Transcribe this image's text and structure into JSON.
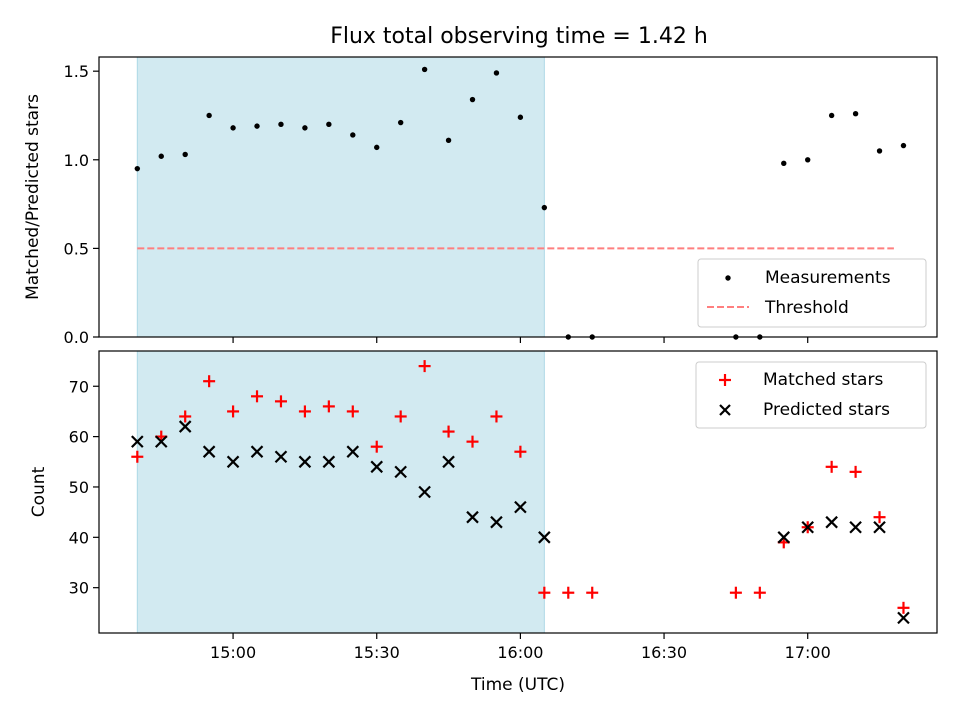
{
  "title": "Flux total observing time = 1.42 h",
  "xlabel": "Time (UTC)",
  "x_ticks": [
    "15:00",
    "15:30",
    "16:00",
    "16:30",
    "17:00"
  ],
  "colors": {
    "shade": "#add8e6",
    "measurements": "#000000",
    "threshold": "#ff7f7f",
    "matched": "#ff0000",
    "predicted": "#000000"
  },
  "chart_data": [
    {
      "type": "scatter",
      "ylabel": "Matched/Predicted stars",
      "xlim": [
        "14:32",
        "17:27"
      ],
      "ylim": [
        0,
        1.58
      ],
      "y_ticks": [
        "0.0",
        "0.5",
        "1.0",
        "1.5"
      ],
      "shaded_region": [
        "14:40",
        "16:05"
      ],
      "legend_position": "lower-right",
      "series": [
        {
          "name": "Measurements",
          "marker": "dot",
          "points": [
            [
              "14:40",
              0.95
            ],
            [
              "14:45",
              1.02
            ],
            [
              "14:50",
              1.03
            ],
            [
              "14:55",
              1.25
            ],
            [
              "15:00",
              1.18
            ],
            [
              "15:05",
              1.19
            ],
            [
              "15:10",
              1.2
            ],
            [
              "15:15",
              1.18
            ],
            [
              "15:20",
              1.2
            ],
            [
              "15:25",
              1.14
            ],
            [
              "15:30",
              1.07
            ],
            [
              "15:35",
              1.21
            ],
            [
              "15:40",
              1.51
            ],
            [
              "15:45",
              1.11
            ],
            [
              "15:50",
              1.34
            ],
            [
              "15:55",
              1.49
            ],
            [
              "16:00",
              1.24
            ],
            [
              "16:05",
              0.73
            ],
            [
              "16:10",
              0.0
            ],
            [
              "16:15",
              0.0
            ],
            [
              "16:45",
              0.0
            ],
            [
              "16:50",
              0.0
            ],
            [
              "16:55",
              0.98
            ],
            [
              "17:00",
              1.0
            ],
            [
              "17:05",
              1.25
            ],
            [
              "17:10",
              1.26
            ],
            [
              "17:15",
              1.05
            ],
            [
              "17:20",
              1.08
            ]
          ]
        },
        {
          "name": "Threshold",
          "marker": "dashed-line",
          "points": [
            [
              "14:40",
              0.5
            ],
            [
              "17:18",
              0.5
            ]
          ]
        }
      ]
    },
    {
      "type": "scatter",
      "ylabel": "Count",
      "xlim": [
        "14:32",
        "17:27"
      ],
      "ylim": [
        21,
        77
      ],
      "y_ticks": [
        "30",
        "40",
        "50",
        "60",
        "70"
      ],
      "shaded_region": [
        "14:40",
        "16:05"
      ],
      "legend_position": "upper-right",
      "series": [
        {
          "name": "Matched stars",
          "marker": "plus",
          "points": [
            [
              "14:40",
              56
            ],
            [
              "14:45",
              60
            ],
            [
              "14:50",
              64
            ],
            [
              "14:55",
              71
            ],
            [
              "15:00",
              65
            ],
            [
              "15:05",
              68
            ],
            [
              "15:10",
              67
            ],
            [
              "15:15",
              65
            ],
            [
              "15:20",
              66
            ],
            [
              "15:25",
              65
            ],
            [
              "15:30",
              58
            ],
            [
              "15:35",
              64
            ],
            [
              "15:40",
              74
            ],
            [
              "15:45",
              61
            ],
            [
              "15:50",
              59
            ],
            [
              "15:55",
              64
            ],
            [
              "16:00",
              57
            ],
            [
              "16:05",
              29
            ],
            [
              "16:10",
              29
            ],
            [
              "16:15",
              29
            ],
            [
              "16:45",
              29
            ],
            [
              "16:50",
              29
            ],
            [
              "16:55",
              39
            ],
            [
              "17:00",
              42
            ],
            [
              "17:05",
              54
            ],
            [
              "17:10",
              53
            ],
            [
              "17:15",
              44
            ],
            [
              "17:20",
              26
            ]
          ]
        },
        {
          "name": "Predicted stars",
          "marker": "x",
          "points": [
            [
              "14:40",
              59
            ],
            [
              "14:45",
              59
            ],
            [
              "14:50",
              62
            ],
            [
              "14:55",
              57
            ],
            [
              "15:00",
              55
            ],
            [
              "15:05",
              57
            ],
            [
              "15:10",
              56
            ],
            [
              "15:15",
              55
            ],
            [
              "15:20",
              55
            ],
            [
              "15:25",
              57
            ],
            [
              "15:30",
              54
            ],
            [
              "15:35",
              53
            ],
            [
              "15:40",
              49
            ],
            [
              "15:45",
              55
            ],
            [
              "15:50",
              44
            ],
            [
              "15:55",
              43
            ],
            [
              "16:00",
              46
            ],
            [
              "16:05",
              40
            ],
            [
              "16:55",
              40
            ],
            [
              "17:00",
              42
            ],
            [
              "17:05",
              43
            ],
            [
              "17:10",
              42
            ],
            [
              "17:15",
              42
            ],
            [
              "17:20",
              24
            ]
          ]
        }
      ]
    }
  ]
}
